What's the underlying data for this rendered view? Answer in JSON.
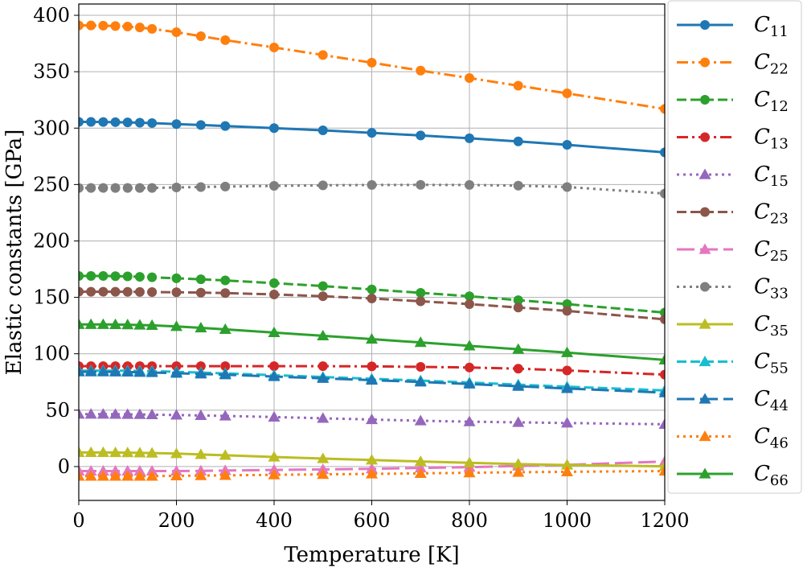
{
  "chart_data": {
    "type": "line",
    "title": "",
    "xlabel": "Temperature [K]",
    "ylabel": "Elastic constants [GPa]",
    "xlim": [
      0,
      1200
    ],
    "ylim": [
      -30,
      410
    ],
    "xticks": [
      0,
      200,
      400,
      600,
      800,
      1000,
      1200
    ],
    "yticks": [
      0,
      50,
      100,
      150,
      200,
      250,
      300,
      350,
      400
    ],
    "grid": true,
    "legend_position": "right-outside",
    "x": [
      0,
      25,
      50,
      75,
      100,
      125,
      150,
      200,
      250,
      300,
      400,
      500,
      600,
      700,
      800,
      900,
      1000,
      1200
    ],
    "series": [
      {
        "name": "C11",
        "sym": "C",
        "sub": "11",
        "color": "#1f77b4",
        "dash": "solid",
        "marker": "circle",
        "values": [
          305.5,
          305.5,
          305.4,
          305.3,
          305.1,
          304.8,
          304.5,
          303.6,
          302.8,
          301.9,
          300.0,
          298.0,
          295.8,
          293.5,
          291.0,
          288.2,
          285.2,
          278.5
        ]
      },
      {
        "name": "C22",
        "sym": "C",
        "sub": "22",
        "color": "#ff7f0e",
        "dash": "dashdot",
        "marker": "circle",
        "values": [
          391.0,
          391.0,
          390.8,
          390.5,
          390.0,
          389.2,
          388.0,
          385.0,
          381.5,
          378.0,
          371.5,
          364.8,
          358.0,
          351.0,
          344.4,
          337.6,
          330.8,
          317.0
        ]
      },
      {
        "name": "C12",
        "sym": "C",
        "sub": "12",
        "color": "#2ca02c",
        "dash": "dashed",
        "marker": "circle",
        "values": [
          169.0,
          169.0,
          169.0,
          168.8,
          168.6,
          168.2,
          167.8,
          166.9,
          166.0,
          165.0,
          162.6,
          160.0,
          157.0,
          154.0,
          151.0,
          147.5,
          144.0,
          136.5
        ]
      },
      {
        "name": "C13",
        "sym": "C",
        "sub": "13",
        "color": "#d62728",
        "dash": "dashdot",
        "marker": "circle",
        "values": [
          89.0,
          89.0,
          89.0,
          89.0,
          89.0,
          89.0,
          89.0,
          89.0,
          89.0,
          89.0,
          89.0,
          89.0,
          88.8,
          88.4,
          87.8,
          86.8,
          85.2,
          81.5
        ]
      },
      {
        "name": "C15",
        "sym": "C",
        "sub": "15",
        "color": "#9467bd",
        "dash": "dotted",
        "marker": "triangle",
        "values": [
          46.5,
          46.5,
          46.5,
          46.4,
          46.3,
          46.2,
          46.0,
          45.7,
          45.3,
          44.9,
          43.9,
          42.8,
          41.7,
          40.6,
          39.8,
          39.2,
          38.6,
          37.5
        ]
      },
      {
        "name": "C23",
        "sym": "C",
        "sub": "23",
        "color": "#8c564b",
        "dash": "dashed",
        "marker": "circle",
        "values": [
          155.0,
          155.0,
          155.0,
          155.0,
          154.9,
          154.8,
          154.7,
          154.5,
          154.2,
          153.8,
          152.6,
          151.0,
          149.0,
          146.5,
          144.0,
          141.0,
          138.0,
          130.5
        ]
      },
      {
        "name": "C25",
        "sym": "C",
        "sub": "25",
        "color": "#e377c2",
        "dash": "longdash",
        "marker": "triangle",
        "values": [
          -4.0,
          -4.0,
          -4.0,
          -4.0,
          -4.0,
          -4.0,
          -4.0,
          -4.0,
          -3.8,
          -3.5,
          -3.0,
          -2.5,
          -2.0,
          -1.2,
          -0.5,
          0.5,
          1.5,
          4.5
        ]
      },
      {
        "name": "C33",
        "sym": "C",
        "sub": "33",
        "color": "#7f7f7f",
        "dash": "dotted",
        "marker": "circle",
        "values": [
          247.0,
          247.0,
          247.0,
          247.0,
          247.0,
          247.0,
          247.0,
          247.4,
          247.8,
          248.2,
          248.8,
          249.3,
          249.6,
          249.7,
          249.6,
          249.0,
          247.8,
          242.0
        ]
      },
      {
        "name": "C35",
        "sym": "C",
        "sub": "35",
        "color": "#bcbd22",
        "dash": "solid",
        "marker": "triangle",
        "values": [
          12.5,
          12.5,
          12.5,
          12.4,
          12.3,
          12.2,
          12.0,
          11.5,
          10.7,
          10.0,
          8.5,
          7.1,
          5.8,
          4.5,
          3.3,
          2.2,
          1.4,
          0.2
        ]
      },
      {
        "name": "C55",
        "sym": "C",
        "sub": "55",
        "color": "#17becf",
        "dash": "dashed",
        "marker": "triangle",
        "values": [
          85.0,
          85.0,
          85.0,
          85.0,
          84.9,
          84.8,
          84.6,
          84.0,
          83.3,
          82.6,
          81.0,
          79.4,
          77.8,
          76.2,
          74.5,
          72.6,
          70.8,
          67.5
        ]
      },
      {
        "name": "C44",
        "sym": "C",
        "sub": "44",
        "color": "#1f77b4",
        "dash": "longdash",
        "marker": "triangle",
        "values": [
          84.0,
          84.0,
          84.0,
          83.9,
          83.8,
          83.6,
          83.4,
          82.8,
          82.1,
          81.4,
          79.8,
          78.2,
          76.6,
          75.0,
          73.2,
          71.2,
          69.2,
          65.5
        ]
      },
      {
        "name": "C46",
        "sym": "C",
        "sub": "46",
        "color": "#ff7f0e",
        "dash": "dotted",
        "marker": "triangle",
        "values": [
          -8.5,
          -8.5,
          -8.5,
          -8.5,
          -8.5,
          -8.5,
          -8.5,
          -8.2,
          -8.0,
          -7.8,
          -7.3,
          -6.9,
          -6.5,
          -6.0,
          -5.5,
          -5.0,
          -4.6,
          -4.0
        ]
      },
      {
        "name": "C66",
        "sym": "C",
        "sub": "66",
        "color": "#2ca02c",
        "dash": "solid",
        "marker": "triangle",
        "values": [
          126.0,
          126.0,
          126.0,
          125.9,
          125.7,
          125.5,
          125.2,
          124.2,
          123.0,
          121.6,
          118.8,
          115.9,
          113.0,
          110.0,
          107.0,
          104.0,
          101.0,
          94.5
        ]
      }
    ]
  }
}
